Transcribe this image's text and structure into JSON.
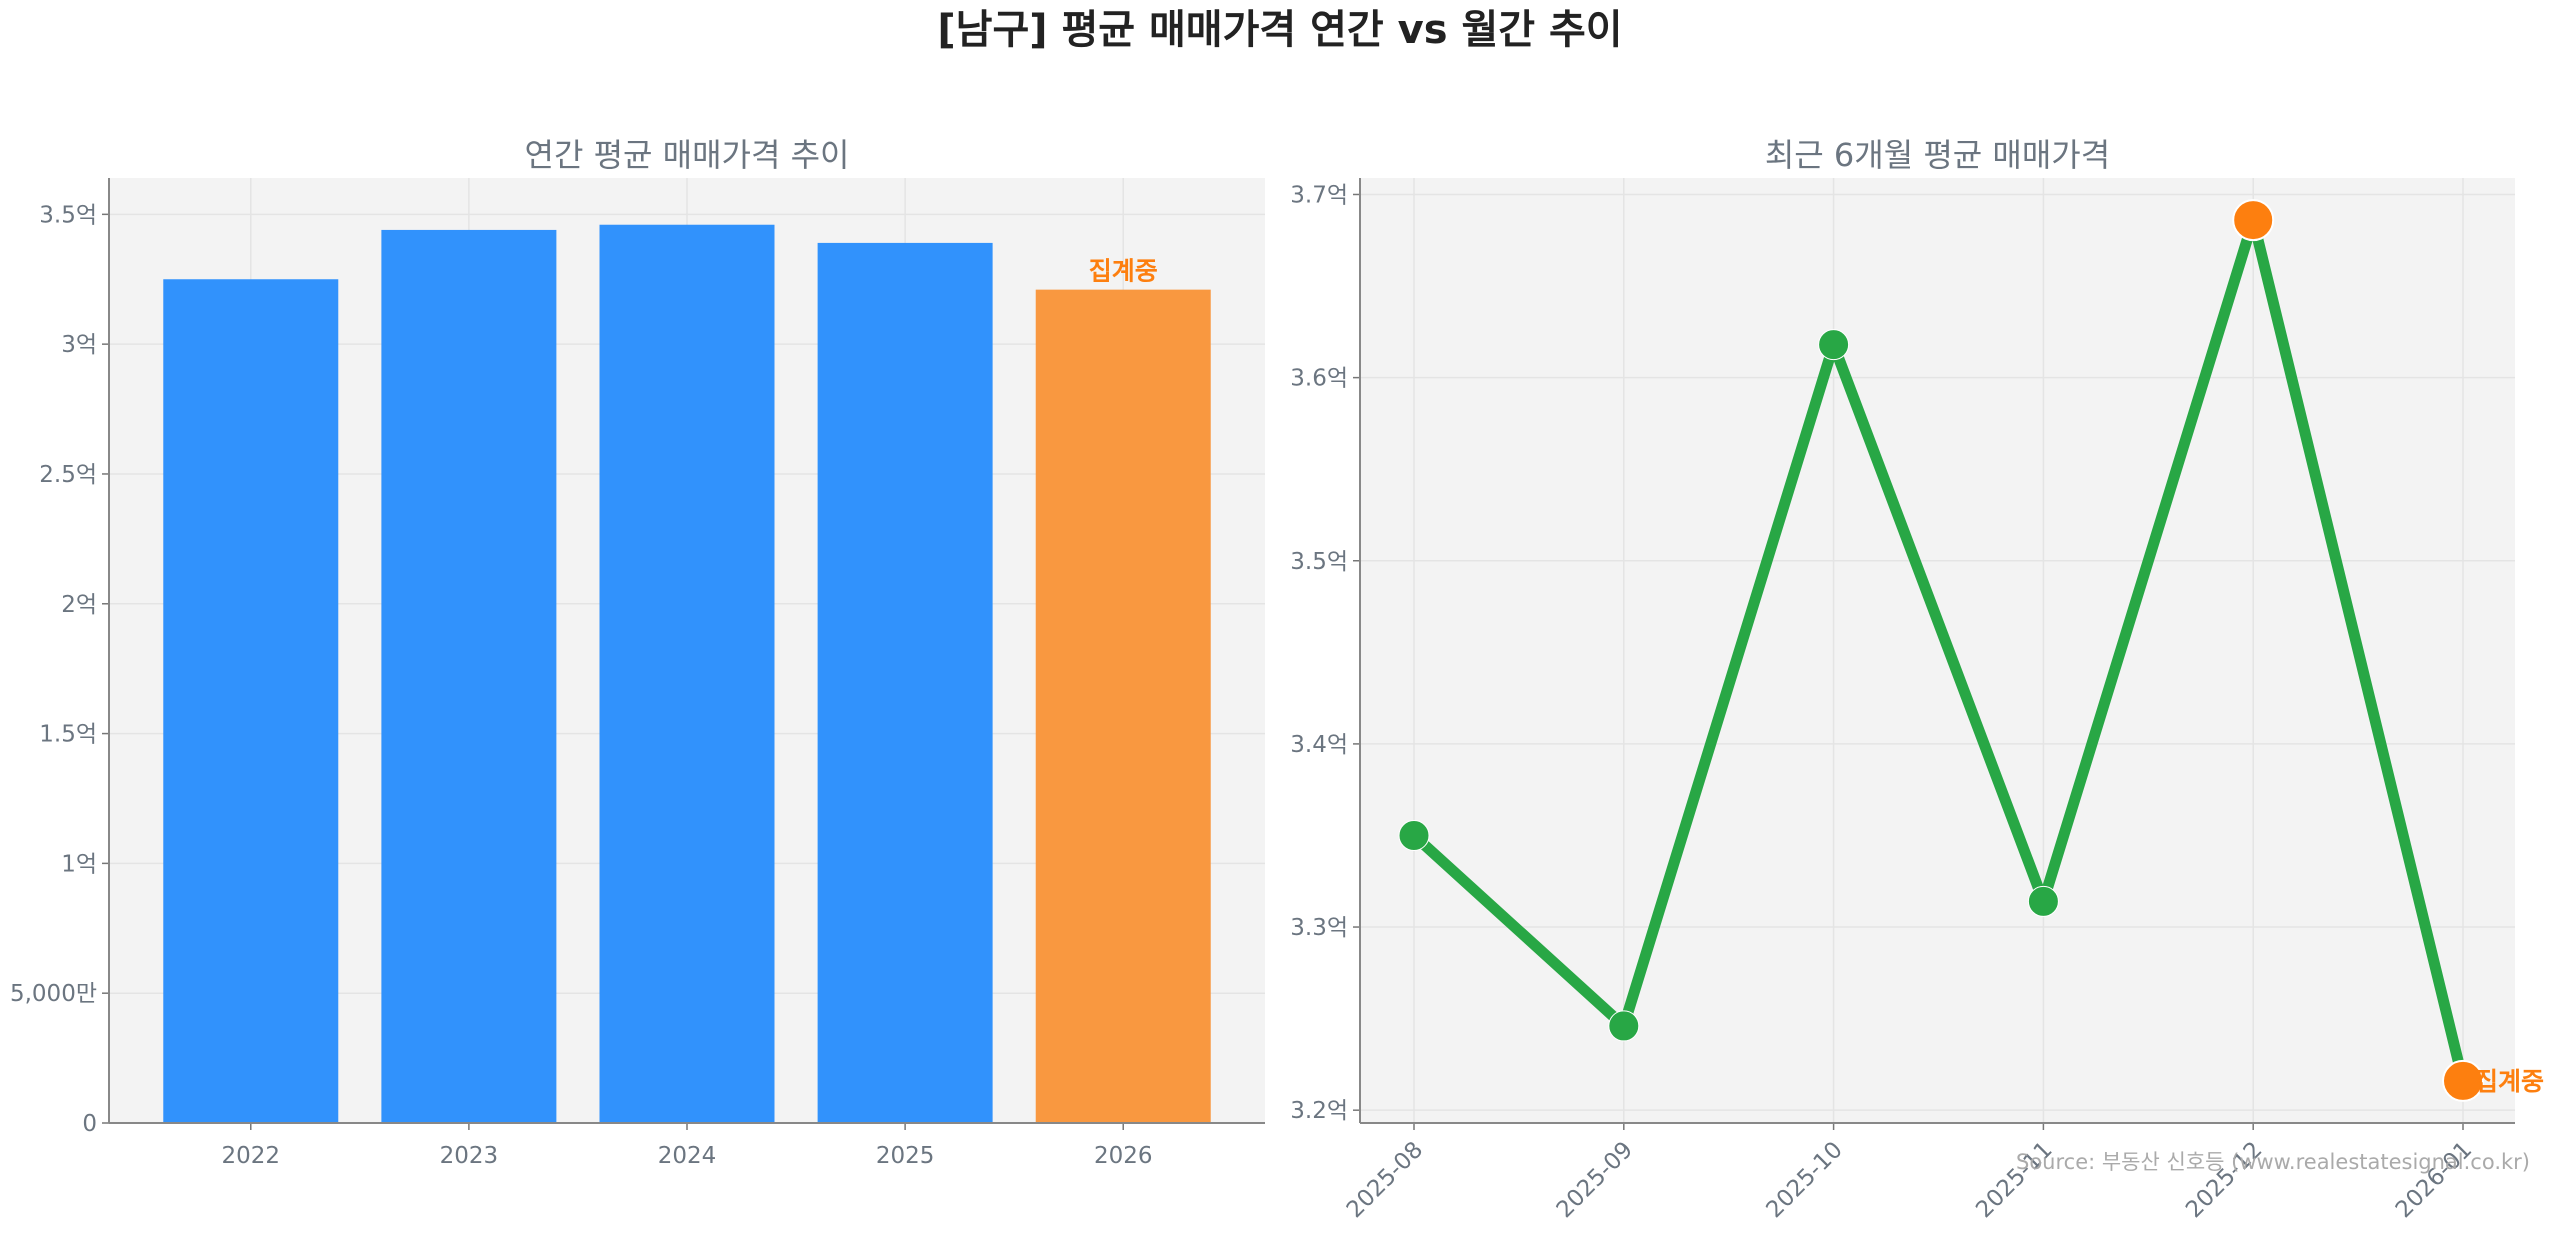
{
  "title": "[남구] 평균 매매가격 연간 vs 월간 추이",
  "source": "Source: 부동산 신호등 (www.realestatesignal.co.kr)",
  "chart_data": [
    {
      "type": "bar",
      "title": "연간 평균 매매가격 추이",
      "categories": [
        "2022",
        "2023",
        "2024",
        "2025",
        "2026"
      ],
      "values": [
        3.25,
        3.44,
        3.46,
        3.39,
        3.21
      ],
      "unit": "억",
      "ylim": [
        0,
        3.64
      ],
      "yticks": [
        0,
        0.5,
        1,
        1.5,
        2,
        2.5,
        3,
        3.5
      ],
      "ytick_labels": [
        "0",
        "5,000만",
        "1억",
        "1.5억",
        "2억",
        "2.5억",
        "3억",
        "3.5억"
      ],
      "bar_colors": [
        "#3192fc",
        "#3192fc",
        "#3192fc",
        "#3192fc",
        "#f99840"
      ],
      "annotation": {
        "category": "2026",
        "text": "집계중",
        "color": "#fd7f0f"
      },
      "grid": true
    },
    {
      "type": "line",
      "title": "최근 6개월 평균 매매가격",
      "x": [
        "2025-08",
        "2025-09",
        "2025-10",
        "2025-11",
        "2025-12",
        "2026-01"
      ],
      "values": [
        3.35,
        3.246,
        3.618,
        3.314,
        3.686,
        3.216
      ],
      "unit": "억",
      "ylim": [
        3.193,
        3.709
      ],
      "yticks": [
        3.2,
        3.3,
        3.4,
        3.5,
        3.6,
        3.7
      ],
      "ytick_labels": [
        "3.2억",
        "3.3억",
        "3.4억",
        "3.5억",
        "3.6억",
        "3.7억"
      ],
      "line_color": "#28a745",
      "highlight_points": [
        "2025-12",
        "2026-01"
      ],
      "highlight_color": "#fd7f0f",
      "annotation": {
        "x": "2026-01",
        "text": "집계중",
        "color": "#fd7f0f"
      },
      "grid": true
    }
  ]
}
